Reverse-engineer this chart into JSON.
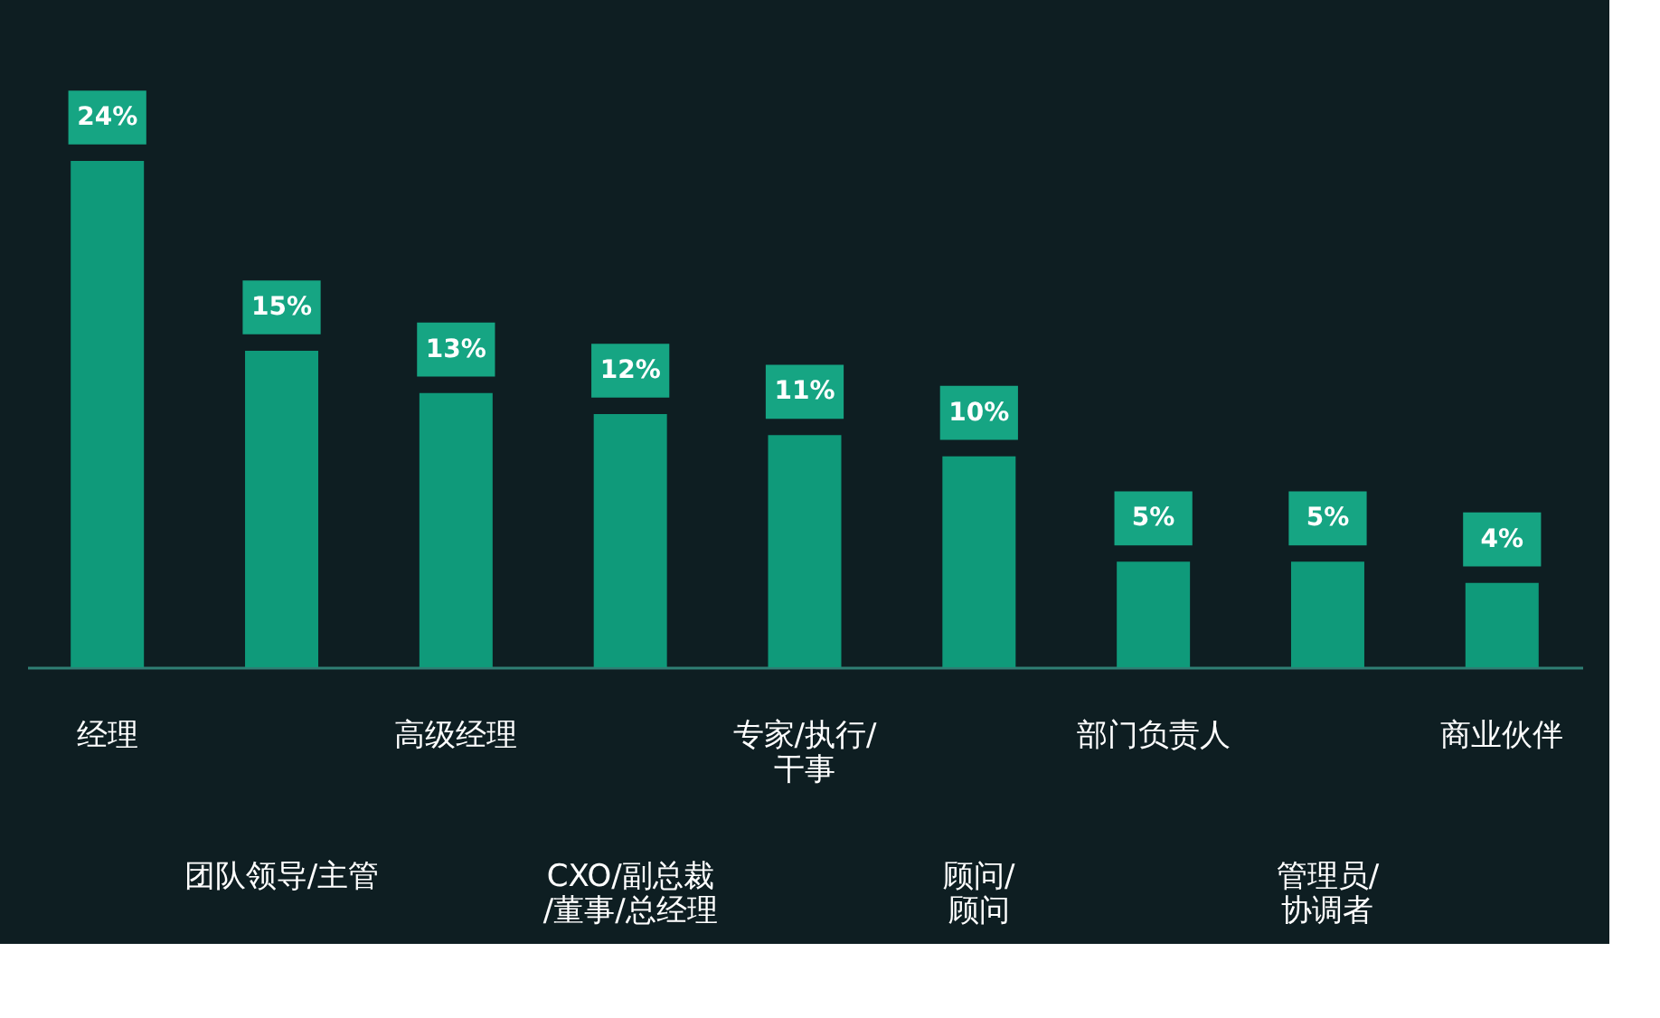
{
  "chart_data": {
    "type": "bar",
    "categories": [
      "经理",
      "团队领导/主管",
      "高级经理",
      "CXO/副总裁\n/董事/总经理",
      "专家/执行/\n干事",
      "顾问/\n顾问",
      "部门负责人",
      "管理员/\n协调者",
      "商业伙伴"
    ],
    "values": [
      24,
      15,
      13,
      12,
      11,
      10,
      5,
      5,
      4
    ],
    "value_labels": [
      "24%",
      "15%",
      "13%",
      "12%",
      "11%",
      "10%",
      "5%",
      "5%",
      "4%"
    ],
    "color": "#0f9a7a"
  }
}
